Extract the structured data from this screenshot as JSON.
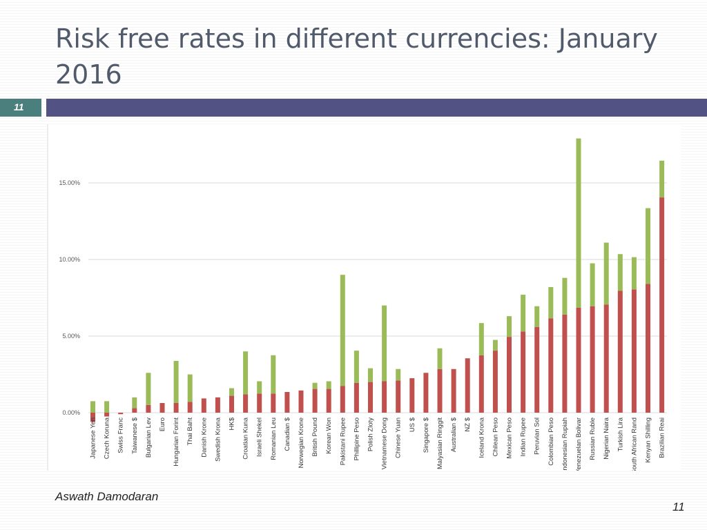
{
  "slide": {
    "title": "Risk free rates in different currencies: January 2016",
    "number": "11",
    "author": "Aswath Damodaran",
    "page_number": "11"
  },
  "colors": {
    "title_bar": "#525384",
    "number_box": "#4a7f7d",
    "series_red": "#c0504d",
    "series_green": "#9bbb59"
  },
  "chart_data": {
    "type": "bar",
    "stacked": true,
    "categories": [
      "Japanese Yen",
      "Czech Koruna",
      "Swiss Franc",
      "Taiwanese $",
      "Bulgarian Lev",
      "Euro",
      "Hungarian Forint",
      "Thai Baht",
      "Danish Krone",
      "Swedish Krona",
      "HK$",
      "Croatian Kuna",
      "Israeli Shekel",
      "Romanian Leu",
      "Canadian $",
      "Norwegian Krone",
      "British Pound",
      "Korean Won",
      "Pakistani Rupee",
      "Phillipine Peso",
      "Polish Zloty",
      "Vietnamese Dong",
      "Chinese Yuan",
      "US $",
      "Singapore $",
      "Malyasian Ringgit",
      "Australian $",
      "NZ $",
      "Iceland Krona",
      "Chilean Peso",
      "Mexican Peso",
      "Indian Rupee",
      "Peruvian Sol",
      "Colombian Peso",
      "Indonesian Rupiah",
      "Venezuelan Bolivar",
      "Russian Ruble",
      "Nigerian Naira",
      "Turkish Lira",
      "South African Rand",
      "Kenyan Shilling",
      "Brazilian Reai"
    ],
    "series": [
      {
        "values": [
          -0.6,
          -0.25,
          -0.1,
          0.3,
          0.5,
          0.63,
          0.63,
          0.7,
          0.93,
          1.0,
          1.1,
          1.2,
          1.25,
          1.25,
          1.35,
          1.45,
          1.55,
          1.55,
          1.75,
          1.95,
          2.0,
          2.05,
          2.1,
          2.25,
          2.6,
          2.85,
          2.85,
          3.55,
          3.75,
          4.05,
          4.95,
          5.3,
          5.6,
          6.15,
          6.4,
          6.85,
          6.95,
          7.05,
          7.95,
          8.05,
          8.4,
          14.05
        ],
        "color": "#c0504d"
      },
      {
        "values": [
          0.75,
          0.75,
          0,
          0.7,
          2.1,
          0,
          2.75,
          1.8,
          0,
          0,
          0.5,
          2.8,
          0.8,
          2.5,
          0,
          0,
          0.4,
          0.5,
          7.25,
          2.1,
          0.9,
          4.95,
          0.75,
          0,
          0,
          1.35,
          0,
          0,
          2.1,
          0.7,
          1.35,
          2.4,
          1.35,
          2.05,
          2.4,
          11.05,
          2.8,
          4.05,
          2.4,
          2.1,
          4.95,
          2.4
        ],
        "color": "#9bbb59"
      }
    ],
    "y_ticks": [
      "0.00%",
      "5.00%",
      "10.00%",
      "15.00%"
    ],
    "ylim": [
      -1,
      18
    ],
    "grid": true,
    "legend": "none"
  }
}
